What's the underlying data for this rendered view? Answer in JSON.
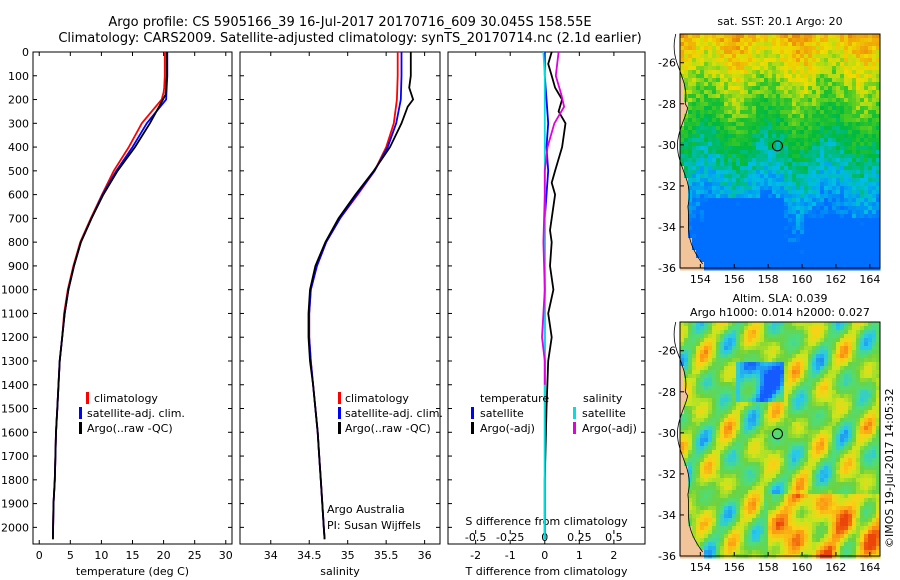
{
  "title": {
    "line1": "Argo profile: CS 5905166_39 16-Jul-2017 20170716_609 30.045S 158.55E",
    "line2": "Climatology: CARS2009. Satellite-adjusted climatology: synTS_20170714.nc (2.1d earlier)"
  },
  "colors": {
    "climatology": "#ff0000",
    "satellite": "#0000ff",
    "argo": "#000000",
    "sal_satellite": "#00e0e0",
    "sal_argo": "#e000e0"
  },
  "depth_axis": {
    "ticks": [
      0,
      100,
      200,
      300,
      400,
      500,
      600,
      700,
      800,
      900,
      1000,
      1100,
      1200,
      1300,
      1400,
      1500,
      1600,
      1700,
      1800,
      1900,
      2000
    ],
    "ylim": [
      2070,
      0
    ]
  },
  "chart_data": [
    {
      "type": "line",
      "xlabel": "temperature (deg C)",
      "xlim": [
        -1,
        31
      ],
      "xticks": [
        0,
        5,
        10,
        15,
        20,
        25,
        30
      ],
      "legend": {
        "position": "bottom-left",
        "entries": [
          "climatology",
          "satellite-adj. clim.",
          "Argo(..raw -QC)"
        ]
      },
      "series": [
        {
          "name": "climatology",
          "color_key": "climatology",
          "x": [
            20.2,
            20.2,
            20.1,
            20.0,
            19.7,
            16.5,
            14.4,
            12.0,
            10.1,
            8.3,
            6.6,
            5.5,
            4.6,
            4.0,
            3.7,
            3.3,
            3.1,
            2.9,
            2.7,
            2.6,
            2.5,
            2.3,
            2.2
          ],
          "y": [
            0,
            100,
            150,
            170,
            200,
            300,
            400,
            500,
            600,
            700,
            800,
            900,
            1000,
            1100,
            1200,
            1300,
            1400,
            1500,
            1600,
            1700,
            1800,
            1900,
            2050
          ]
        },
        {
          "name": "satellite-adj. clim.",
          "color_key": "satellite",
          "x": [
            20.6,
            20.6,
            20.5,
            20.4,
            17.3,
            15.0,
            12.4,
            10.2,
            8.4,
            6.7,
            5.6,
            4.7,
            4.1,
            3.7,
            3.3,
            3.1,
            2.9,
            2.7,
            2.6,
            2.5,
            2.3,
            2.2
          ],
          "y": [
            0,
            100,
            150,
            200,
            300,
            400,
            500,
            600,
            700,
            800,
            900,
            1000,
            1100,
            1200,
            1300,
            1400,
            1500,
            1600,
            1700,
            1800,
            1900,
            2050
          ]
        },
        {
          "name": "Argo(..raw -QC)",
          "color_key": "argo",
          "x": [
            20.5,
            20.5,
            20.4,
            20.3,
            17.8,
            15.4,
            12.6,
            10.3,
            8.4,
            6.7,
            5.6,
            4.7,
            4.1,
            3.7,
            3.3,
            3.1,
            2.9,
            2.7,
            2.6,
            2.5,
            2.3,
            2.2
          ],
          "y": [
            0,
            100,
            150,
            180,
            300,
            400,
            500,
            600,
            700,
            800,
            900,
            1000,
            1100,
            1200,
            1300,
            1400,
            1500,
            1600,
            1700,
            1800,
            1900,
            2050
          ]
        }
      ]
    },
    {
      "type": "line",
      "xlabel": "salinity",
      "xlim": [
        33.6,
        36.2
      ],
      "xticks": [
        34,
        34.5,
        35,
        35.5,
        36
      ],
      "xticklabels": [
        "34",
        "34.5",
        "35",
        "35.5",
        "36"
      ],
      "legend": {
        "position": "bottom-left",
        "entries": [
          "climatology",
          "satellite-adj. clim.",
          "Argo(..raw -QC)"
        ]
      },
      "annotations": [
        "Argo Australia",
        "PI: Susan Wijffels"
      ],
      "series": [
        {
          "name": "climatology",
          "color_key": "climatology",
          "x": [
            35.65,
            35.65,
            35.64,
            35.6,
            35.5,
            35.35,
            35.13,
            34.9,
            34.72,
            34.6,
            34.52,
            34.5,
            34.5,
            34.52,
            34.55,
            34.58,
            34.61,
            34.63,
            34.65,
            34.67,
            34.69,
            34.7
          ],
          "y": [
            0,
            100,
            200,
            300,
            400,
            500,
            600,
            700,
            800,
            900,
            1000,
            1100,
            1200,
            1300,
            1400,
            1500,
            1600,
            1700,
            1800,
            1900,
            2000,
            2050
          ]
        },
        {
          "name": "satellite-adj. clim.",
          "color_key": "satellite",
          "x": [
            35.7,
            35.7,
            35.69,
            35.63,
            35.52,
            35.35,
            35.12,
            34.9,
            34.72,
            34.6,
            34.52,
            34.5,
            34.5,
            34.52,
            34.55,
            34.58,
            34.61,
            34.63,
            34.65,
            34.67,
            34.69,
            34.7
          ],
          "y": [
            0,
            100,
            200,
            300,
            400,
            500,
            600,
            700,
            800,
            900,
            1000,
            1100,
            1200,
            1300,
            1400,
            1500,
            1600,
            1700,
            1800,
            1900,
            2000,
            2050
          ]
        },
        {
          "name": "Argo(..raw -QC)",
          "color_key": "argo",
          "x": [
            35.82,
            35.82,
            35.8,
            35.85,
            35.78,
            35.7,
            35.55,
            35.34,
            35.1,
            34.88,
            34.71,
            34.58,
            34.51,
            34.49,
            34.49,
            34.51,
            34.55,
            34.58,
            34.61,
            34.63,
            34.65,
            34.67,
            34.69,
            34.7
          ],
          "y": [
            0,
            100,
            150,
            200,
            230,
            300,
            400,
            500,
            600,
            700,
            800,
            900,
            1000,
            1100,
            1200,
            1300,
            1400,
            1500,
            1600,
            1700,
            1800,
            1900,
            2000,
            2050
          ]
        }
      ]
    },
    {
      "type": "line",
      "xlabel": "T difference from climatology",
      "xlabel_top": "S difference from climatology",
      "xlim": [
        -2.8,
        2.9
      ],
      "xticks": [
        -2,
        -1,
        0,
        1,
        2
      ],
      "top_ticklabels": [
        "-0.5",
        "-0.25",
        "0",
        "0.25",
        "0.5"
      ],
      "top_tick_values": [
        -0.5,
        -0.25,
        0,
        0.25,
        0.5
      ],
      "s_scale": 4,
      "legend": {
        "position": "bottom",
        "temperature_title": "temperature",
        "salinity_title": "salinity",
        "entries": [
          "satellite",
          "Argo(-adj)",
          "satellite",
          "Argo(-adj)"
        ]
      },
      "series": [
        {
          "name": "satellite",
          "color_key": "satellite",
          "x": [
            0.0,
            0.0,
            0.05,
            0.1,
            0.05,
            0.1,
            0.05,
            0.0,
            0.0,
            0.0,
            0.0,
            0.0,
            0.0,
            0.0,
            0.0
          ],
          "y": [
            0,
            100,
            200,
            300,
            400,
            500,
            600,
            700,
            800,
            900,
            1000,
            1200,
            1500,
            1800,
            2050
          ]
        },
        {
          "name": "Argo(-adj)",
          "color_key": "argo",
          "x": [
            0.2,
            0.1,
            0.2,
            0.3,
            0.5,
            0.4,
            0.6,
            0.5,
            0.3,
            0.2,
            0.3,
            0.2,
            0.15,
            0.2,
            0.15,
            0.25,
            0.1,
            0.2,
            0.1,
            0.05,
            0.0,
            0.0
          ],
          "y": [
            0,
            50,
            100,
            150,
            200,
            250,
            300,
            400,
            500,
            550,
            600,
            700,
            750,
            800,
            900,
            1000,
            1100,
            1200,
            1300,
            1500,
            1800,
            2050
          ]
        },
        {
          "name": "satellite",
          "color_key": "sal_satellite",
          "x": [
            -0.01,
            0.0,
            0.0,
            0.0,
            0.0,
            0.0,
            0.0,
            0.0,
            0.0,
            0.0,
            0.0,
            0.0
          ],
          "y": [
            0,
            100,
            200,
            300,
            400,
            500,
            700,
            900,
            1100,
            1400,
            1800,
            2050
          ]
        },
        {
          "name": "Argo(-adj)",
          "color_key": "sal_argo",
          "x": [
            0.1,
            0.08,
            0.12,
            0.14,
            0.07,
            0.02,
            0.0,
            0.0,
            -0.01,
            0.0,
            -0.02,
            0.0,
            0.0
          ],
          "y": [
            0,
            100,
            180,
            230,
            300,
            400,
            500,
            600,
            800,
            1000,
            1200,
            1300,
            1400
          ]
        }
      ]
    },
    {
      "type": "heatmap",
      "title": "sat. SST: 20.1  Argo: 20",
      "xticks": [
        154,
        156,
        158,
        160,
        162,
        164
      ],
      "yticks": [
        -26,
        -28,
        -30,
        -32,
        -34,
        -36
      ],
      "xlim": [
        152.8,
        164.6
      ],
      "ylim": [
        -36,
        -24.6
      ],
      "marker": {
        "lon": 158.55,
        "lat": -30.05
      }
    },
    {
      "type": "heatmap",
      "title": "Altim. SLA: 0.039",
      "subtitle": "Argo h1000: 0.014  h2000: 0.027",
      "xticks": [
        154,
        156,
        158,
        160,
        162,
        164
      ],
      "yticks": [
        -26,
        -28,
        -30,
        -32,
        -34,
        -36
      ],
      "xlim": [
        152.8,
        164.6
      ],
      "ylim": [
        -36,
        -24.6
      ],
      "marker": {
        "lon": 158.55,
        "lat": -30.05
      }
    }
  ],
  "credit": "©IMOS 19-Jul-2017 14:05:32"
}
